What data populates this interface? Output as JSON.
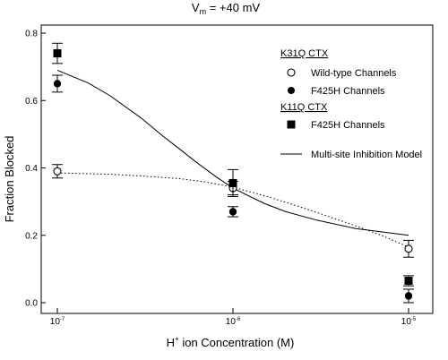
{
  "chart_data": {
    "type": "scatter",
    "title_parts": {
      "v": "V",
      "sub": "m",
      "rest": " = +40 mV"
    },
    "xlabel_parts": {
      "h": "H",
      "sup": "+",
      "rest": " ion Concentration (M)"
    },
    "ylabel": "Fraction Blocked",
    "x_scale": "log",
    "xlim": [
      1e-07,
      1e-05
    ],
    "ylim": [
      0,
      0.8
    ],
    "x_ticks": [
      {
        "value": 1e-07,
        "base": "10",
        "exp": "-7"
      },
      {
        "value": 1e-06,
        "base": "10",
        "exp": "-6"
      },
      {
        "value": 1e-05,
        "base": "10",
        "exp": "-5"
      }
    ],
    "y_ticks": [
      {
        "value": 0.0,
        "label": "0.0"
      },
      {
        "value": 0.2,
        "label": "0.2"
      },
      {
        "value": 0.4,
        "label": "0.4"
      },
      {
        "value": 0.6,
        "label": "0.6"
      },
      {
        "value": 0.8,
        "label": "0.8"
      }
    ],
    "legend_groups": [
      {
        "heading": "K31Q CTX",
        "entries": [
          {
            "label": "Wild-type Channels",
            "marker": "open-circle"
          },
          {
            "label": "F425H Channels",
            "marker": "filled-circle"
          }
        ]
      },
      {
        "heading": "K11Q CTX",
        "entries": [
          {
            "label": "F425H Channels",
            "marker": "filled-square"
          }
        ]
      }
    ],
    "model_legend": "Multi-site Inhibition Model",
    "series": [
      {
        "name": "Wild-type Channels",
        "marker": "open-circle",
        "points": [
          {
            "x": 1e-07,
            "y": 0.39,
            "err": 0.02
          },
          {
            "x": 1e-06,
            "y": 0.34,
            "err": 0.02
          },
          {
            "x": 1e-05,
            "y": 0.16,
            "err": 0.025
          }
        ]
      },
      {
        "name": "F425H Channels",
        "marker": "filled-circle",
        "points": [
          {
            "x": 1e-07,
            "y": 0.65,
            "err": 0.025
          },
          {
            "x": 1e-06,
            "y": 0.27,
            "err": 0.015
          },
          {
            "x": 1e-05,
            "y": 0.02,
            "err": 0.02
          }
        ]
      },
      {
        "name": "F425H Channels",
        "marker": "filled-square",
        "points": [
          {
            "x": 1e-07,
            "y": 0.74,
            "err": 0.03
          },
          {
            "x": 1e-06,
            "y": 0.355,
            "err": 0.04
          },
          {
            "x": 1e-05,
            "y": 0.065,
            "err": 0.015
          }
        ]
      }
    ],
    "model_curves": [
      {
        "style": "solid",
        "x": [
          1e-07,
          1.5e-07,
          2e-07,
          3e-07,
          4e-07,
          5e-07,
          6e-07,
          8e-07,
          1e-06,
          1.5e-06,
          2e-06,
          3e-06,
          5e-06,
          1e-05
        ],
        "y": [
          0.69,
          0.652,
          0.614,
          0.548,
          0.494,
          0.455,
          0.422,
          0.374,
          0.34,
          0.295,
          0.27,
          0.245,
          0.22,
          0.2
        ]
      },
      {
        "style": "dotted",
        "x": [
          1e-07,
          2e-07,
          3e-07,
          5e-07,
          7e-07,
          1e-06,
          1.5e-06,
          2e-06,
          3e-06,
          5e-06,
          7e-06,
          1e-05
        ],
        "y": [
          0.385,
          0.381,
          0.376,
          0.368,
          0.358,
          0.343,
          0.318,
          0.298,
          0.268,
          0.228,
          0.2,
          0.165
        ]
      }
    ]
  }
}
